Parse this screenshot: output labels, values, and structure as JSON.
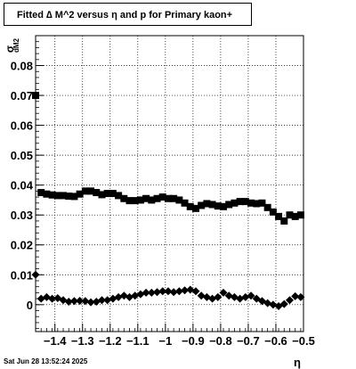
{
  "title": "Fitted ∆ M^2 versus η and p for Primary kaon+",
  "timestamp": "Sat Jun 28 13:52:24 2025",
  "chart_data": {
    "type": "scatter",
    "xlabel": "η",
    "ylabel": "σ",
    "ylabel_subscript": "dM2",
    "xlim": [
      -1.47,
      -0.5
    ],
    "ylim": [
      -0.009,
      0.09
    ],
    "grid": true,
    "x_ticks": [
      -1.4,
      -1.3,
      -1.2,
      -1.1,
      -1.0,
      -0.9,
      -0.8,
      -0.7,
      -0.6,
      -0.5
    ],
    "x_tick_labels": [
      "−1.4",
      "−1.3",
      "−1.2",
      "−1.1",
      "−1",
      "−0.9",
      "−0.8",
      "−0.7",
      "−0.6",
      "−0.5"
    ],
    "y_ticks": [
      0,
      0.01,
      0.02,
      0.03,
      0.04,
      0.05,
      0.06,
      0.07,
      0.08
    ],
    "y_tick_labels": [
      "0",
      "0.01",
      "0.02",
      "0.03",
      "0.04",
      "0.05",
      "0.06",
      "0.07",
      "0.08"
    ],
    "series": [
      {
        "marker": "square",
        "color": "#000000",
        "x": [
          -1.47,
          -1.45,
          -1.43,
          -1.41,
          -1.39,
          -1.37,
          -1.35,
          -1.33,
          -1.31,
          -1.29,
          -1.27,
          -1.25,
          -1.23,
          -1.21,
          -1.19,
          -1.17,
          -1.15,
          -1.13,
          -1.11,
          -1.09,
          -1.07,
          -1.05,
          -1.03,
          -1.01,
          -0.99,
          -0.97,
          -0.95,
          -0.93,
          -0.91,
          -0.89,
          -0.87,
          -0.85,
          -0.83,
          -0.81,
          -0.79,
          -0.77,
          -0.75,
          -0.73,
          -0.71,
          -0.69,
          -0.67,
          -0.65,
          -0.63,
          -0.61,
          -0.59,
          -0.57,
          -0.55,
          -0.53,
          -0.51
        ],
        "y": [
          0.07,
          0.0375,
          0.037,
          0.0367,
          0.0365,
          0.0365,
          0.0363,
          0.0362,
          0.037,
          0.038,
          0.038,
          0.0375,
          0.0368,
          0.0372,
          0.0372,
          0.0365,
          0.0355,
          0.0348,
          0.0348,
          0.035,
          0.0355,
          0.035,
          0.0355,
          0.036,
          0.0355,
          0.0355,
          0.035,
          0.034,
          0.0328,
          0.0322,
          0.0332,
          0.0338,
          0.0335,
          0.033,
          0.0328,
          0.0335,
          0.034,
          0.0345,
          0.0345,
          0.034,
          0.0338,
          0.034,
          0.0325,
          0.031,
          0.0295,
          0.028,
          0.03,
          0.0295,
          0.03
        ]
      },
      {
        "marker": "diamond",
        "color": "#000000",
        "x": [
          -1.47,
          -1.45,
          -1.43,
          -1.41,
          -1.39,
          -1.37,
          -1.35,
          -1.33,
          -1.31,
          -1.29,
          -1.27,
          -1.25,
          -1.23,
          -1.21,
          -1.19,
          -1.17,
          -1.15,
          -1.13,
          -1.11,
          -1.09,
          -1.07,
          -1.05,
          -1.03,
          -1.01,
          -0.99,
          -0.97,
          -0.95,
          -0.93,
          -0.91,
          -0.89,
          -0.87,
          -0.85,
          -0.83,
          -0.81,
          -0.79,
          -0.77,
          -0.75,
          -0.73,
          -0.71,
          -0.69,
          -0.67,
          -0.65,
          -0.63,
          -0.61,
          -0.59,
          -0.57,
          -0.55,
          -0.53,
          -0.51
        ],
        "y": [
          0.01,
          0.002,
          0.0025,
          0.002,
          0.0022,
          0.0015,
          0.001,
          0.0012,
          0.0013,
          0.0012,
          0.0008,
          0.001,
          0.0015,
          0.0015,
          0.002,
          0.0025,
          0.003,
          0.0025,
          0.003,
          0.0035,
          0.004,
          0.004,
          0.0042,
          0.0045,
          0.0045,
          0.0042,
          0.0045,
          0.0048,
          0.005,
          0.0045,
          0.003,
          0.0025,
          0.002,
          0.0025,
          0.004,
          0.003,
          0.0025,
          0.002,
          0.0025,
          0.003,
          0.002,
          0.0012,
          0.0005,
          0.0,
          -0.0005,
          0.0002,
          0.0015,
          0.0028,
          0.0025
        ]
      }
    ]
  }
}
